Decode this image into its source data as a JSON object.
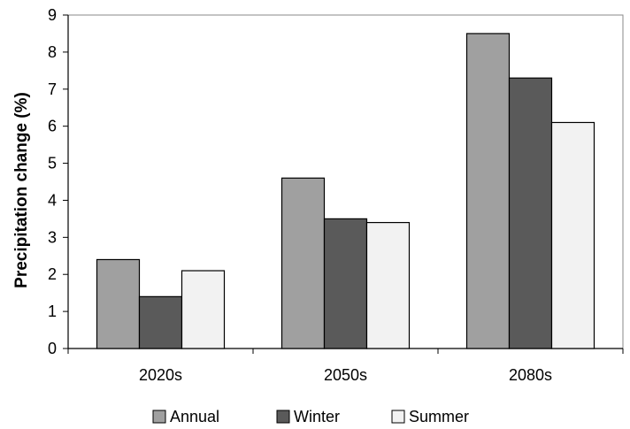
{
  "chart_data": {
    "type": "bar",
    "title": "",
    "xlabel": "",
    "ylabel": "Precipitation change (%)",
    "categories": [
      "2020s",
      "2050s",
      "2080s"
    ],
    "series": [
      {
        "name": "Annual",
        "values": [
          2.4,
          4.6,
          8.5
        ],
        "color": "#a0a0a0"
      },
      {
        "name": "Winter",
        "values": [
          1.4,
          3.5,
          7.3
        ],
        "color": "#5a5a5a"
      },
      {
        "name": "Summer",
        "values": [
          2.1,
          3.4,
          6.1
        ],
        "color": "#f2f2f2"
      }
    ],
    "ylim": [
      0,
      9
    ],
    "yticks": [
      "0",
      "1",
      "2",
      "3",
      "4",
      "5",
      "6",
      "7",
      "8",
      "9"
    ],
    "grid": false,
    "legend_position": "bottom"
  }
}
